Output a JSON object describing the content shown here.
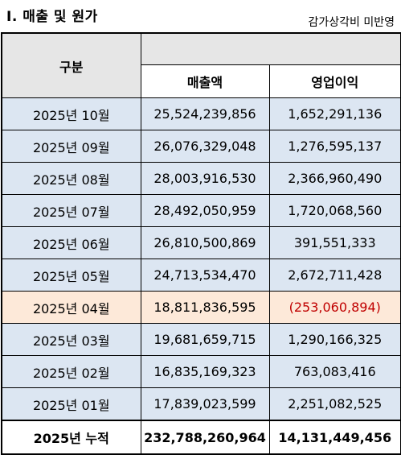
{
  "title": "Ⅰ. 매출 및 원가",
  "note": "감가상각비 미반영",
  "header": {
    "group_label": "구분",
    "col_revenue": "매출액",
    "col_op_profit": "영업이익"
  },
  "rows": [
    {
      "period": "2025년 10월",
      "revenue": "25,524,239,856",
      "op_profit": "1,652,291,136"
    },
    {
      "period": "2025년 09월",
      "revenue": "26,076,329,048",
      "op_profit": "1,276,595,137"
    },
    {
      "period": "2025년 08월",
      "revenue": "28,003,916,530",
      "op_profit": "2,366,960,490"
    },
    {
      "period": "2025년 07월",
      "revenue": "28,492,050,959",
      "op_profit": "1,720,068,560"
    },
    {
      "period": "2025년 06월",
      "revenue": "26,810,500,869",
      "op_profit": "391,551,333"
    },
    {
      "period": "2025년 05월",
      "revenue": "24,713,534,470",
      "op_profit": "2,672,711,428"
    },
    {
      "period": "2025년 04월",
      "revenue": "18,811,836,595",
      "op_profit": "(253,060,894)"
    },
    {
      "period": "2025년 03월",
      "revenue": "19,681,659,715",
      "op_profit": "1,290,166,325"
    },
    {
      "period": "2025년 02월",
      "revenue": "16,835,169,323",
      "op_profit": "763,083,416"
    },
    {
      "period": "2025년 01월",
      "revenue": "17,839,023,599",
      "op_profit": "2,251,082,525"
    }
  ],
  "total": {
    "label": "2025년 누적",
    "revenue": "232,788,260,964",
    "op_profit": "14,131,449,456"
  },
  "colors": {
    "row_bg": "#dce6f2",
    "highlight_bg": "#fde9d9",
    "header_bg": "#e6e6e6",
    "negative_text": "#c00000"
  }
}
